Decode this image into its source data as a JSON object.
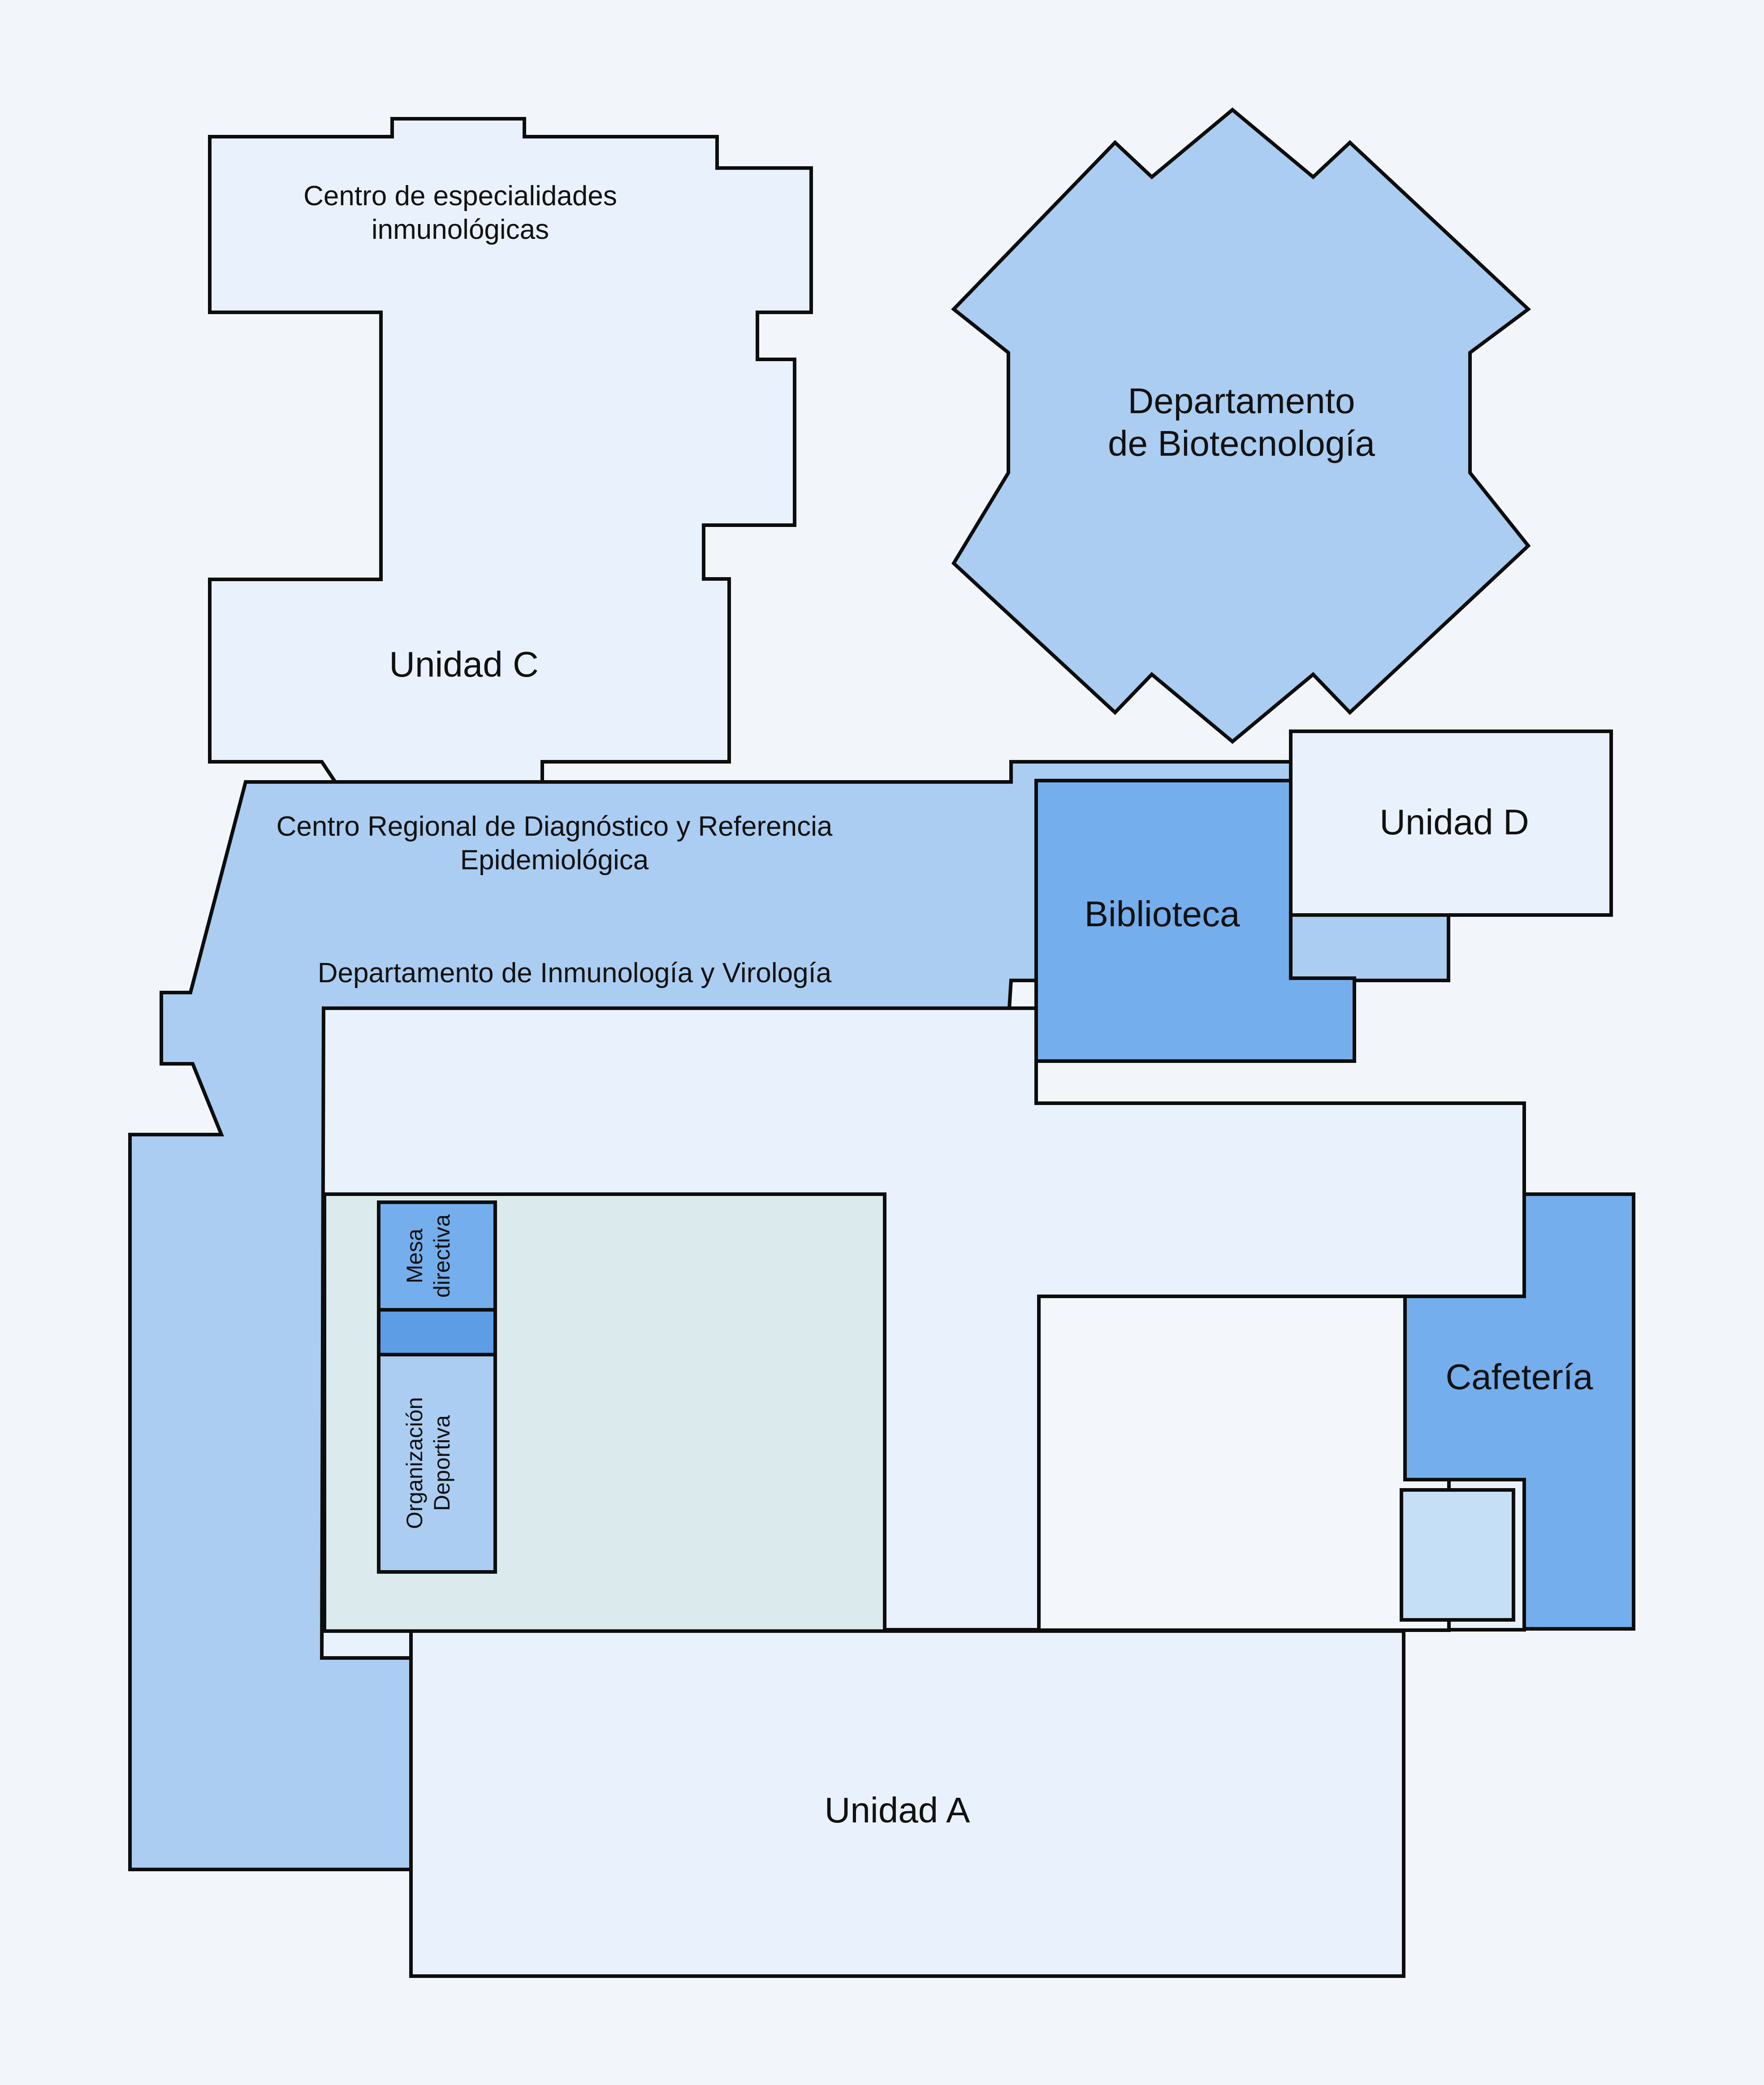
{
  "map": {
    "colors": {
      "background": "#f2f6fa",
      "pale": "#e9f2fc",
      "light_blue": "#aacdf1",
      "medium_blue": "#74aeec",
      "courtyard": "#dbeaec",
      "white": "#f3f7fb",
      "small_box": "#c5dff6",
      "stroke": "#0d0d0d"
    },
    "areas": {
      "unidad_c": {
        "name": "Unidad C",
        "wing_label_line1": "Centro de especialidades",
        "wing_label_line2": "inmunológicas"
      },
      "biotecnologia": {
        "line1": "Departamento",
        "line2": "de Biotecnología"
      },
      "centro_regional": {
        "line1": "Centro Regional de Diagnóstico y Referencia",
        "line2": "Epidemiológica",
        "sub_label": "Departamento de Inmunología y Virología"
      },
      "unidad_d": {
        "name": "Unidad D"
      },
      "biblioteca": {
        "name": "Biblioteca"
      },
      "cafeteria": {
        "name": "Cafetería"
      },
      "mesa_directiva": {
        "line1": "Mesa",
        "line2": "directiva"
      },
      "organizacion_deportiva": {
        "line1": "Organización",
        "line2": "Deportiva"
      },
      "unidad_a": {
        "name": "Unidad A"
      }
    }
  }
}
